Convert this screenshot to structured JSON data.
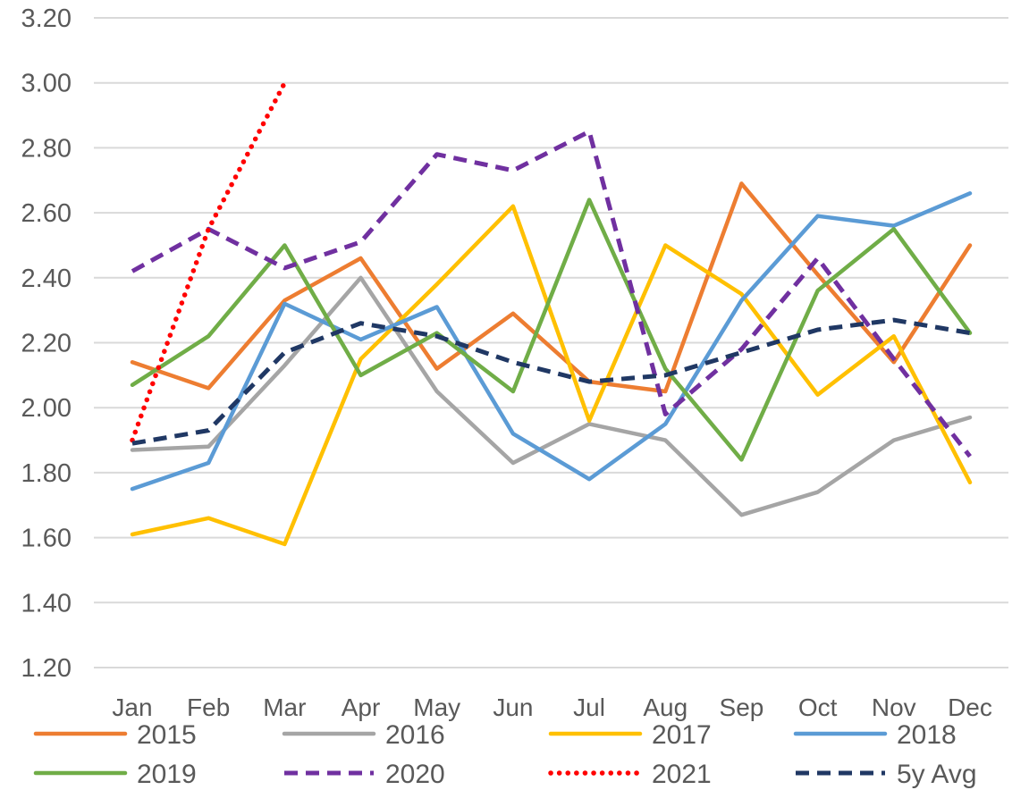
{
  "chart_data": {
    "type": "line",
    "title": "",
    "xlabel": "",
    "ylabel": "",
    "categories": [
      "Jan",
      "Feb",
      "Mar",
      "Apr",
      "May",
      "Jun",
      "Jul",
      "Aug",
      "Sep",
      "Oct",
      "Nov",
      "Dec"
    ],
    "y_axis": {
      "min": 1.2,
      "max": 3.2,
      "step": 0.2,
      "tick_labels": [
        "3.20",
        "3.00",
        "2.80",
        "2.60",
        "2.40",
        "2.20",
        "2.00",
        "1.80",
        "1.60",
        "1.40",
        "1.20"
      ]
    },
    "grid": true,
    "gridline_color": "#d9d9d9",
    "text_color": "#595959",
    "legend_position": "bottom",
    "series": [
      {
        "name": "2015",
        "color": "#ED7D31",
        "style": "solid",
        "values": [
          2.14,
          2.06,
          2.33,
          2.46,
          2.12,
          2.29,
          2.08,
          2.05,
          2.69,
          2.41,
          2.14,
          2.5
        ]
      },
      {
        "name": "2016",
        "color": "#A5A5A5",
        "style": "solid",
        "values": [
          1.87,
          1.88,
          2.13,
          2.4,
          2.05,
          1.83,
          1.95,
          1.9,
          1.67,
          1.74,
          1.9,
          1.97
        ]
      },
      {
        "name": "2017",
        "color": "#FFC000",
        "style": "solid",
        "values": [
          1.61,
          1.66,
          1.58,
          2.15,
          2.38,
          2.62,
          1.96,
          2.5,
          2.35,
          2.04,
          2.22,
          1.77
        ]
      },
      {
        "name": "2018",
        "color": "#5B9BD5",
        "style": "solid",
        "values": [
          1.75,
          1.83,
          2.32,
          2.21,
          2.31,
          1.92,
          1.78,
          1.95,
          2.33,
          2.59,
          2.56,
          2.66
        ]
      },
      {
        "name": "2019",
        "color": "#70AD47",
        "style": "solid",
        "values": [
          2.07,
          2.22,
          2.5,
          2.1,
          2.23,
          2.05,
          2.64,
          2.12,
          1.84,
          2.36,
          2.55,
          2.23
        ]
      },
      {
        "name": "2020",
        "color": "#7030A0",
        "style": "dashed",
        "values": [
          2.42,
          2.55,
          2.43,
          2.51,
          2.78,
          2.73,
          2.85,
          1.98,
          2.18,
          2.46,
          2.15,
          1.85
        ]
      },
      {
        "name": "2021",
        "color": "#FF0000",
        "style": "dotted",
        "values": [
          1.9,
          2.55,
          3.0,
          null,
          null,
          null,
          null,
          null,
          null,
          null,
          null,
          null
        ]
      },
      {
        "name": "5y Avg",
        "color": "#203864",
        "style": "dashed",
        "values": [
          1.89,
          1.93,
          2.17,
          2.26,
          2.22,
          2.14,
          2.08,
          2.1,
          2.17,
          2.24,
          2.27,
          2.23
        ]
      }
    ],
    "legend_rows": [
      [
        "2015",
        "2016",
        "2017",
        "2018"
      ],
      [
        "2019",
        "2020",
        "2021",
        "5y Avg"
      ]
    ]
  }
}
